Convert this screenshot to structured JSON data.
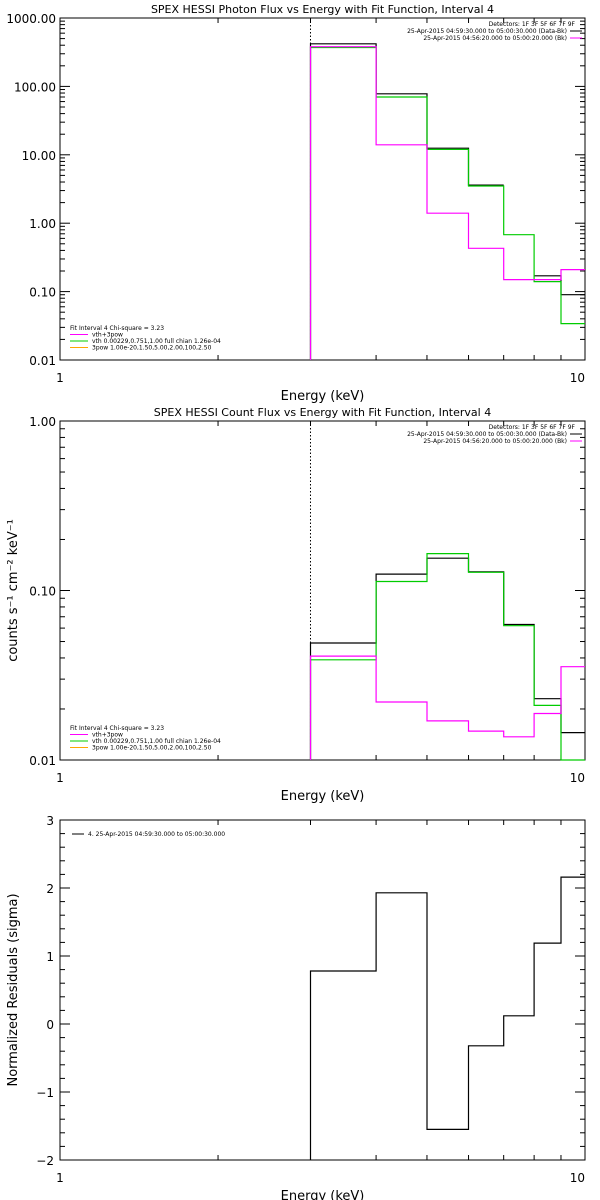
{
  "chart_data": [
    {
      "type": "line",
      "title": "SPEX HESSI Photon Flux vs Energy with Fit Function, Interval 4",
      "xlabel": "Energy (keV)",
      "ylabel": "",
      "xscale": "log",
      "yscale": "log",
      "xlim": [
        1,
        10
      ],
      "ylim": [
        0.01,
        1000
      ],
      "xticks": [
        "1",
        "10"
      ],
      "yticks": [
        "0.01",
        "0.10",
        "1.00",
        "10.00",
        "100.00",
        "1000.00"
      ],
      "marker_line_x": 3,
      "legend_right": {
        "header": "Detectors: 1F 3F 5F 6F 7F 9F",
        "entries": [
          "25-Apr-2015 04:59:30.000 to 05:00:30.000 (Data-Bk)",
          "25-Apr-2015 04:56:20.000 to 05:00:20.000 (Bk)"
        ]
      },
      "legend_left": {
        "header": "Fit Interval  4   Chi-square = 3.23",
        "entries": [
          "vth+3pow",
          "vth 0.00229,0.751,1.00  full chian 1.26e-04",
          "3pow 1.00e-20,1.50,5.00,2.00,100,2.50"
        ]
      },
      "bin_edges": [
        3.0,
        4.0,
        5.0,
        6.0,
        7.0,
        8.0,
        9.0,
        10.0
      ],
      "series": [
        {
          "name": "25-Apr-2015 04:59:30.000 to 05:00:30.000 (Data-Bk)",
          "color": "#000000",
          "values": [
            420,
            78,
            12.5,
            3.6,
            null,
            0.17,
            0.09
          ]
        },
        {
          "name": "vth+3pow",
          "color": "#00cc00",
          "values": [
            370,
            70,
            12,
            3.5,
            0.68,
            0.14,
            0.034
          ]
        },
        {
          "name": "25-Apr-2015 04:56:20.000 to 05:00:20.000 (Bk)",
          "color": "#ff00ff",
          "values": [
            380,
            14,
            1.4,
            0.43,
            0.15,
            0.15,
            0.21
          ]
        }
      ]
    },
    {
      "type": "line",
      "title": "SPEX HESSI Count Flux vs Energy with Fit Function, Interval 4",
      "xlabel": "Energy (keV)",
      "ylabel": "counts s⁻¹ cm⁻² keV⁻¹",
      "xscale": "log",
      "yscale": "log",
      "xlim": [
        1,
        10
      ],
      "ylim": [
        0.01,
        1.0
      ],
      "xticks": [
        "1",
        "10"
      ],
      "yticks": [
        "0.01",
        "0.10",
        "1.00"
      ],
      "marker_line_x": 3,
      "legend_right": {
        "header": "Detectors: 1F 3F 5F 6F 7F 9F",
        "entries": [
          "25-Apr-2015 04:59:30.000 to 05:00:30.000 (Data-Bk)",
          "25-Apr-2015 04:56:20.000 to 05:00:20.000 (Bk)"
        ]
      },
      "legend_left": {
        "header": "Fit Interval  4   Chi-square = 3.23",
        "entries": [
          "vth+3pow",
          "vth 0.00229,0.751,1.00  full chian 1.26e-04",
          "3pow 1.00e-20,1.50,5.00,2.00,100,2.50"
        ]
      },
      "bin_edges": [
        3.0,
        4.0,
        5.0,
        6.0,
        7.0,
        8.0,
        9.0,
        10.0
      ],
      "series": [
        {
          "name": "25-Apr-2015 04:59:30.000 to 05:00:30.000 (Data-Bk)",
          "color": "#000000",
          "values": [
            0.049,
            0.125,
            0.155,
            0.129,
            0.063,
            0.023,
            0.0145
          ]
        },
        {
          "name": "vth+3pow",
          "color": "#00cc00",
          "values": [
            0.039,
            0.113,
            0.165,
            0.128,
            0.062,
            0.021,
            0.0095
          ]
        },
        {
          "name": "25-Apr-2015 04:56:20.000 to 05:00:20.000 (Bk)",
          "color": "#ff00ff",
          "values": [
            0.041,
            0.022,
            0.017,
            0.0148,
            0.0137,
            0.0188,
            0.0355
          ]
        }
      ]
    },
    {
      "type": "line",
      "title": "",
      "xlabel": "Energy (keV)",
      "ylabel": "Normalized Residuals (sigma)",
      "xscale": "log",
      "yscale": "linear",
      "xlim": [
        1,
        10
      ],
      "ylim": [
        -2,
        3
      ],
      "xticks": [
        "1",
        "10"
      ],
      "yticks": [
        "−2",
        "−1",
        "0",
        "1",
        "2",
        "3"
      ],
      "legend_left": {
        "entries": [
          "4. 25-Apr-2015 04:59:30.000 to 05:00:30.000"
        ]
      },
      "bin_edges": [
        3.0,
        4.0,
        5.0,
        6.0,
        7.0,
        8.0,
        9.0,
        10.0
      ],
      "series": [
        {
          "name": "4. 25-Apr-2015 04:59:30.000 to 05:00:30.000",
          "color": "#000000",
          "values": [
            0.78,
            1.93,
            -1.55,
            -0.32,
            0.12,
            1.19,
            2.16
          ]
        }
      ]
    }
  ]
}
